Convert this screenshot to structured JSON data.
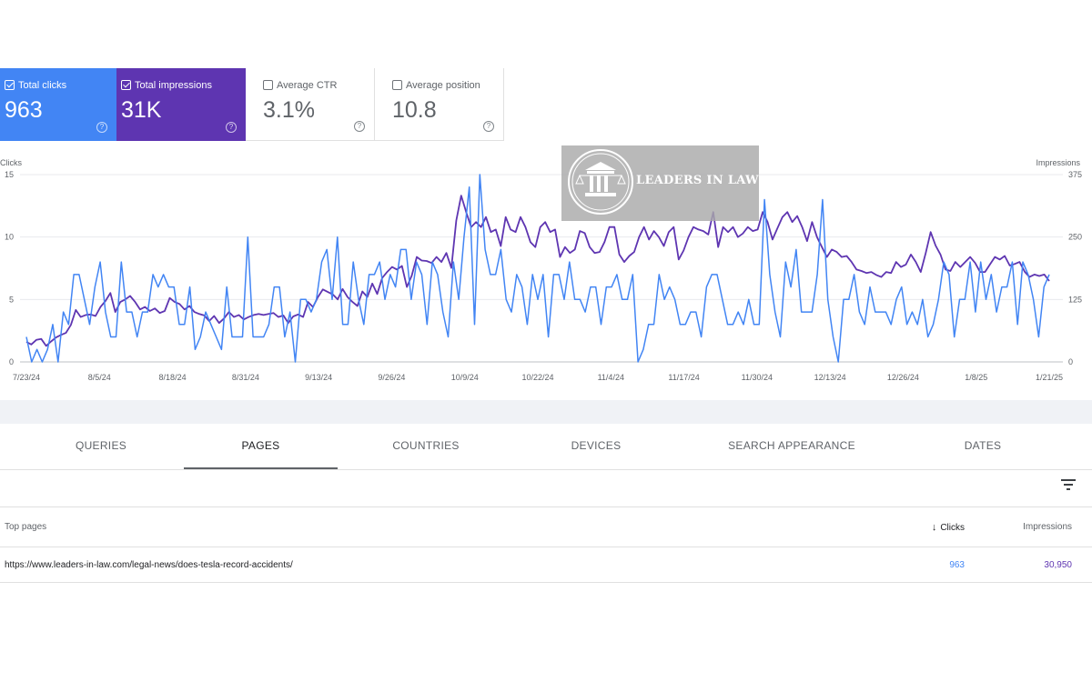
{
  "metrics": {
    "clicks": {
      "label": "Total clicks",
      "value": "963",
      "color": "#4285f4"
    },
    "impressions": {
      "label": "Total impressions",
      "value": "31K",
      "color": "#5e35b1"
    },
    "ctr": {
      "label": "Average CTR",
      "value": "3.1%"
    },
    "position": {
      "label": "Average position",
      "value": "10.8"
    },
    "help_glyph": "?"
  },
  "chart_data": {
    "type": "line",
    "left_axis_label": "Clicks",
    "right_axis_label": "Impressions",
    "left_ticks": [
      "15",
      "10",
      "5",
      "0"
    ],
    "right_ticks": [
      "375",
      "250",
      "125",
      "0"
    ],
    "x_tick_labels": [
      "7/23/24",
      "8/5/24",
      "8/18/24",
      "8/31/24",
      "9/13/24",
      "9/26/24",
      "10/9/24",
      "10/22/24",
      "11/4/24",
      "11/17/24",
      "11/30/24",
      "12/13/24",
      "12/26/24",
      "1/8/25",
      "1/21/25"
    ],
    "ylim_left": [
      0,
      15
    ],
    "ylim_right": [
      0,
      375
    ],
    "grid": true,
    "series": [
      {
        "name": "Clicks",
        "axis": "left",
        "color": "#4285f4",
        "values": [
          2,
          0,
          1,
          0,
          1,
          3,
          0,
          4,
          3,
          7,
          7,
          5,
          3,
          6,
          8,
          4,
          2,
          2,
          8,
          4,
          4,
          2,
          4,
          4,
          7,
          6,
          7,
          6,
          6,
          3,
          3,
          6,
          1,
          2,
          4,
          3,
          2,
          1,
          6,
          2,
          2,
          2,
          10,
          2,
          2,
          2,
          3,
          6,
          6,
          2,
          4,
          0,
          5,
          5,
          4,
          5,
          8,
          9,
          5,
          10,
          3,
          3,
          8,
          5,
          3,
          7,
          7,
          8,
          5,
          7,
          6,
          9,
          9,
          5,
          8,
          7,
          3,
          8,
          7,
          4,
          2,
          8,
          5,
          10,
          14,
          3,
          15,
          9,
          7,
          7,
          9,
          5,
          4,
          7,
          6,
          3,
          7,
          5,
          7,
          2,
          7,
          7,
          5,
          8,
          5,
          5,
          4,
          6,
          6,
          3,
          6,
          6,
          7,
          5,
          5,
          7,
          0,
          1,
          3,
          3,
          7,
          5,
          6,
          5,
          3,
          3,
          4,
          4,
          2,
          6,
          7,
          7,
          5,
          3,
          3,
          4,
          3,
          5,
          3,
          3,
          13,
          7,
          4,
          2,
          8,
          6,
          9,
          4,
          4,
          4,
          7,
          13,
          5,
          2,
          0,
          5,
          5,
          7,
          4,
          3,
          6,
          4,
          4,
          4,
          3,
          5,
          6,
          3,
          4,
          3,
          5,
          2,
          3,
          5,
          8,
          7,
          2,
          5,
          5,
          8,
          4,
          8,
          5,
          7,
          4,
          6,
          6,
          8,
          3,
          8,
          7,
          5,
          2,
          6,
          7
        ]
      },
      {
        "name": "Impressions",
        "axis": "right",
        "color": "#5e35b1",
        "values": [
          40,
          35,
          44,
          46,
          32,
          41,
          49,
          54,
          58,
          74,
          104,
          90,
          94,
          95,
          92,
          110,
          122,
          138,
          100,
          120,
          125,
          132,
          120,
          105,
          110,
          102,
          107,
          98,
          102,
          128,
          120,
          116,
          105,
          112,
          100,
          96,
          93,
          82,
          92,
          78,
          87,
          100,
          90,
          94,
          85,
          90,
          94,
          96,
          94,
          96,
          98,
          90,
          93,
          78,
          91,
          95,
          90,
          120,
          110,
          130,
          145,
          140,
          135,
          125,
          146,
          130,
          120,
          112,
          141,
          130,
          157,
          136,
          168,
          180,
          190,
          185,
          192,
          150,
          173,
          210,
          203,
          202,
          198,
          210,
          200,
          218,
          188,
          283,
          333,
          300,
          270,
          280,
          270,
          290,
          260,
          265,
          232,
          290,
          265,
          260,
          290,
          270,
          240,
          230,
          270,
          280,
          260,
          265,
          210,
          230,
          218,
          225,
          262,
          258,
          230,
          218,
          220,
          240,
          270,
          270,
          215,
          200,
          212,
          220,
          250,
          270,
          245,
          262,
          250,
          232,
          260,
          270,
          205,
          223,
          250,
          270,
          265,
          262,
          255,
          300,
          230,
          270,
          260,
          270,
          250,
          257,
          270,
          262,
          265,
          300,
          280,
          245,
          268,
          290,
          300,
          280,
          292,
          270,
          242,
          280,
          250,
          230,
          210,
          225,
          220,
          210,
          212,
          200,
          185,
          182,
          178,
          180,
          174,
          170,
          180,
          178,
          200,
          190,
          195,
          215,
          200,
          180,
          218,
          260,
          233,
          215,
          185,
          182,
          200,
          190,
          200,
          210,
          198,
          180,
          180,
          195,
          210,
          205,
          212,
          193,
          196,
          200,
          181,
          170,
          175,
          172,
          175,
          162
        ]
      }
    ]
  },
  "watermark": {
    "text": "LEADERS IN LAW"
  },
  "tabs": [
    {
      "label": "QUERIES"
    },
    {
      "label": "PAGES"
    },
    {
      "label": "COUNTRIES"
    },
    {
      "label": "DEVICES"
    },
    {
      "label": "SEARCH APPEARANCE"
    },
    {
      "label": "DATES"
    }
  ],
  "table": {
    "headers": {
      "pages": "Top pages",
      "clicks": "Clicks",
      "impressions": "Impressions",
      "sort_arrow": "↓"
    },
    "rows": [
      {
        "url": "https://www.leaders-in-law.com/legal-news/does-tesla-record-accidents/",
        "clicks": "963",
        "impressions": "30,950"
      }
    ]
  },
  "icons": {
    "filter": "filter-icon",
    "checkbox": "checkbox-icon",
    "help": "help-icon",
    "sort": "arrow-down-icon",
    "logo": "courthouse-scales-logo"
  }
}
